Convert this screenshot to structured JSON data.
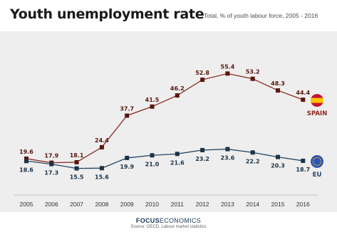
{
  "header": {
    "title": "Youth unemployment rate",
    "subtitle": "Total, % of youth labour force, 2005 - 2016"
  },
  "footer": {
    "brand_bold": "FOCUS",
    "brand_rest": "ECONOMICS",
    "source": "Source: OECD, Labour market statistics"
  },
  "colors": {
    "spain": "#8b2a20",
    "spain_marker": "#5a1710",
    "eu": "#254560",
    "eu_marker": "#1c3347",
    "background": "#eeeeee",
    "flag_red": "#c8102e",
    "flag_yellow": "#ffc400",
    "eu_blue": "#2f54b2"
  },
  "chart_data": {
    "type": "line",
    "title": "Youth unemployment rate",
    "subtitle": "Total, % of youth labour force, 2005 - 2016",
    "x": [
      "2005",
      "2006",
      "2007",
      "2008",
      "2009",
      "2010",
      "2011",
      "2012",
      "2013",
      "2014",
      "2015",
      "2016"
    ],
    "ylim": [
      10,
      60
    ],
    "grid": false,
    "legend": "right",
    "series": [
      {
        "name": "SPAIN",
        "icon": "spain-flag-icon",
        "values": [
          19.6,
          17.9,
          18.1,
          24.4,
          37.7,
          41.5,
          46.2,
          52.8,
          55.4,
          53.2,
          48.3,
          44.4
        ]
      },
      {
        "name": "EU",
        "icon": "eu-flag-icon",
        "values": [
          18.6,
          17.3,
          15.5,
          15.6,
          19.9,
          21.0,
          21.6,
          23.2,
          23.6,
          22.2,
          20.3,
          18.7
        ]
      }
    ]
  }
}
